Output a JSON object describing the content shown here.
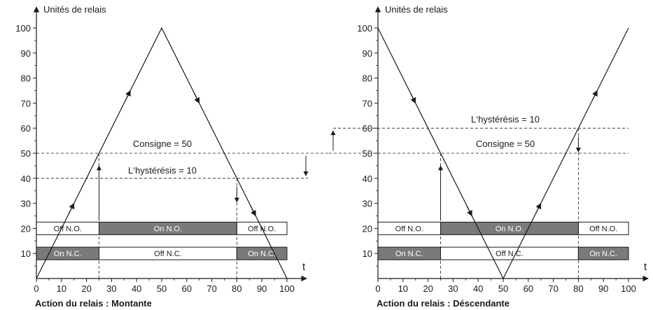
{
  "colors": {
    "on": "#7a7a7a",
    "off": "#ffffff",
    "ink": "#1a1a1a"
  },
  "shared": {
    "y_axis_label": "Unités de relais",
    "x_axis_label": "t",
    "x_ticks": [
      "0",
      "10",
      "20",
      "30",
      "40",
      "50",
      "60",
      "70",
      "80",
      "90",
      "100"
    ],
    "y_ticks": [
      "10",
      "20",
      "30",
      "40",
      "50",
      "60",
      "70",
      "80",
      "90",
      "100"
    ]
  },
  "chart_data": [
    {
      "type": "line",
      "title": "Action du relais : Montante",
      "xlim": [
        0,
        100
      ],
      "ylim": [
        0,
        100
      ],
      "series": [
        {
          "x": [
            0,
            50,
            100
          ],
          "y": [
            0,
            100,
            0
          ]
        }
      ],
      "setpoint": {
        "value": 50,
        "label": "Consigne = 50"
      },
      "hysteresis": {
        "value": 10,
        "label": "L‘hystérésis = 10",
        "level": 40
      },
      "switch_points": [
        25,
        80
      ],
      "no_bar": [
        {
          "from": 0,
          "to": 25,
          "label": "Off N.O.",
          "state": "off"
        },
        {
          "from": 25,
          "to": 80,
          "label": "On N.O.",
          "state": "on"
        },
        {
          "from": 80,
          "to": 100,
          "label": "Off N.O.",
          "state": "off"
        }
      ],
      "nc_bar": [
        {
          "from": 0,
          "to": 25,
          "label": "On N.C.",
          "state": "on"
        },
        {
          "from": 25,
          "to": 80,
          "label": "Off N.C.",
          "state": "off"
        },
        {
          "from": 80,
          "to": 100,
          "label": "On N.C.",
          "state": "on"
        }
      ]
    },
    {
      "type": "line",
      "title": "Action du relais : Déscendante",
      "xlim": [
        0,
        100
      ],
      "ylim": [
        0,
        100
      ],
      "series": [
        {
          "x": [
            0,
            50,
            100
          ],
          "y": [
            100,
            0,
            100
          ]
        }
      ],
      "setpoint": {
        "value": 50,
        "label": "Consigne = 50"
      },
      "hysteresis": {
        "value": 10,
        "label": "L‘hystérésis = 10",
        "level": 60
      },
      "switch_points": [
        25,
        80
      ],
      "no_bar": [
        {
          "from": 0,
          "to": 25,
          "label": "Off N.O.",
          "state": "off"
        },
        {
          "from": 25,
          "to": 80,
          "label": "On N.O.",
          "state": "on"
        },
        {
          "from": 80,
          "to": 100,
          "label": "Off N.O.",
          "state": "off"
        }
      ],
      "nc_bar": [
        {
          "from": 0,
          "to": 25,
          "label": "On N.C.",
          "state": "on"
        },
        {
          "from": 25,
          "to": 80,
          "label": "Off N.C.",
          "state": "off"
        },
        {
          "from": 80,
          "to": 100,
          "label": "On N.C.",
          "state": "on"
        }
      ]
    }
  ]
}
